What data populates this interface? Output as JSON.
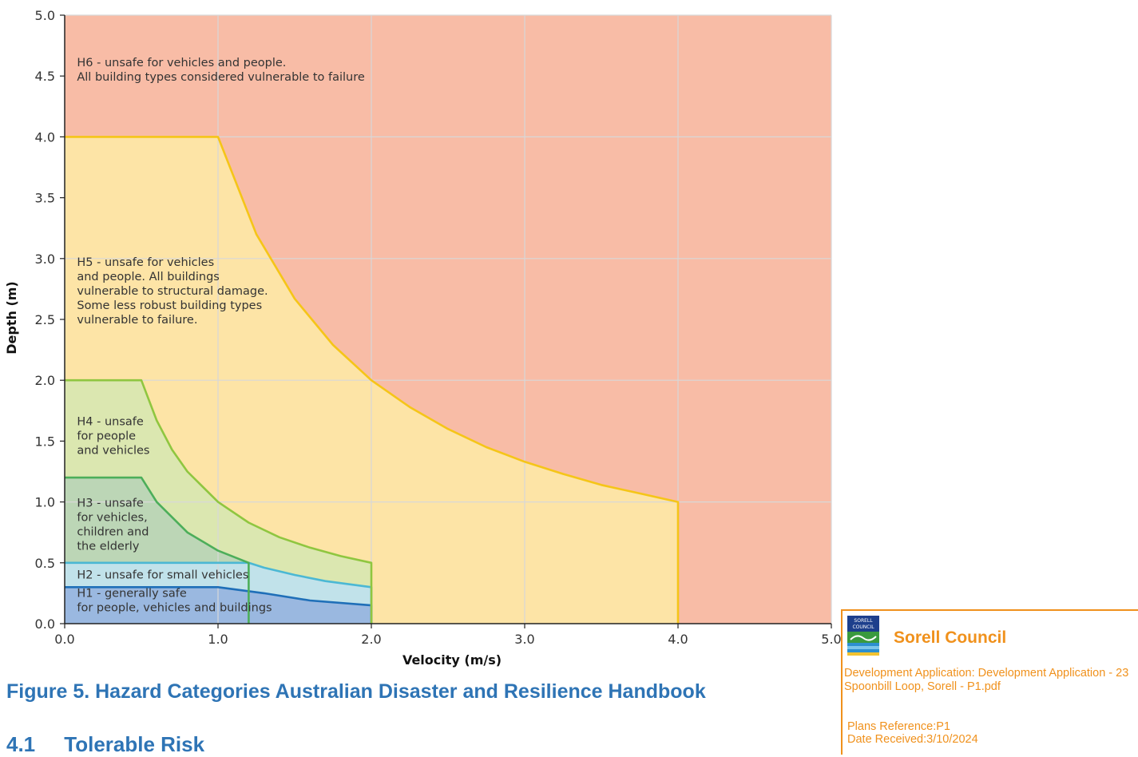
{
  "chart_data": {
    "type": "area",
    "xlabel": "Velocity (m/s)",
    "ylabel": "Depth (m)",
    "xlim": [
      0,
      5
    ],
    "ylim": [
      0,
      5
    ],
    "x_ticks": [
      "0.0",
      "1.0",
      "2.0",
      "3.0",
      "4.0",
      "5.0"
    ],
    "y_ticks": [
      "0.0",
      "0.5",
      "1.0",
      "1.5",
      "2.0",
      "2.5",
      "3.0",
      "3.5",
      "4.0",
      "4.5",
      "5.0"
    ],
    "grid": true,
    "series": [
      {
        "name": "H1",
        "fill": "#9ab8e0",
        "stroke": "#1f6fb8",
        "label_lines": [
          "H1 - generally safe",
          "for people, vehicles and buildings"
        ],
        "boundary": [
          [
            0,
            0.3
          ],
          [
            1.0,
            0.3
          ],
          [
            1.3,
            0.25
          ],
          [
            1.6,
            0.19
          ],
          [
            2.0,
            0.15
          ],
          [
            2.0,
            0.0
          ]
        ]
      },
      {
        "name": "H2",
        "fill": "#c1e2ea",
        "stroke": "#4bb8d4",
        "label_lines": [
          "H2 - unsafe for small vehicles"
        ],
        "boundary": [
          [
            0,
            0.5
          ],
          [
            1.2,
            0.5
          ],
          [
            1.3,
            0.46
          ],
          [
            1.5,
            0.4
          ],
          [
            1.7,
            0.35
          ],
          [
            2.0,
            0.3
          ],
          [
            2.0,
            0.0
          ]
        ]
      },
      {
        "name": "H3",
        "fill": "#bcd6b6",
        "stroke": "#4cae5a",
        "label_lines": [
          "H3 - unsafe",
          "for vehicles,",
          "children and",
          "the elderly"
        ],
        "boundary": [
          [
            0,
            1.2
          ],
          [
            0.5,
            1.2
          ],
          [
            0.6,
            1.0
          ],
          [
            0.8,
            0.75
          ],
          [
            1.0,
            0.6
          ],
          [
            1.2,
            0.5
          ],
          [
            1.2,
            0.0
          ]
        ]
      },
      {
        "name": "H4",
        "fill": "#dbe7b0",
        "stroke": "#8fc640",
        "label_lines": [
          "H4 - unsafe",
          "for people",
          "and vehicles"
        ],
        "boundary": [
          [
            0,
            2.0
          ],
          [
            0.5,
            2.0
          ],
          [
            0.6,
            1.67
          ],
          [
            0.7,
            1.43
          ],
          [
            0.8,
            1.25
          ],
          [
            1.0,
            1.0
          ],
          [
            1.2,
            0.83
          ],
          [
            1.4,
            0.71
          ],
          [
            1.6,
            0.625
          ],
          [
            1.8,
            0.555
          ],
          [
            2.0,
            0.5
          ],
          [
            2.0,
            0.0
          ]
        ]
      },
      {
        "name": "H5",
        "fill": "#fde4a6",
        "stroke": "#f5c518",
        "label_lines": [
          "H5 - unsafe for vehicles",
          "and people. All buildings",
          "vulnerable to structural damage.",
          "Some less robust building types",
          "vulnerable to failure."
        ],
        "boundary": [
          [
            0,
            4.0
          ],
          [
            1.0,
            4.0
          ],
          [
            1.25,
            3.2
          ],
          [
            1.5,
            2.67
          ],
          [
            1.75,
            2.29
          ],
          [
            2.0,
            2.0
          ],
          [
            2.25,
            1.78
          ],
          [
            2.5,
            1.6
          ],
          [
            2.75,
            1.45
          ],
          [
            3.0,
            1.33
          ],
          [
            3.25,
            1.23
          ],
          [
            3.5,
            1.14
          ],
          [
            3.75,
            1.07
          ],
          [
            4.0,
            1.0
          ],
          [
            4.0,
            0.0
          ]
        ]
      },
      {
        "name": "H6",
        "fill": "#f8bca6",
        "stroke": "none",
        "label_lines": [
          "H6 - unsafe for vehicles and people.",
          "All building types considered vulnerable to failure"
        ],
        "boundary": [
          [
            0,
            5.0
          ],
          [
            5.0,
            5.0
          ],
          [
            5.0,
            0.0
          ]
        ]
      }
    ],
    "label_positions": {
      "H1": [
        0.08,
        0.22
      ],
      "H2": [
        0.08,
        0.37
      ],
      "H3": [
        0.08,
        0.96
      ],
      "H4": [
        0.08,
        1.63
      ],
      "H5": [
        0.08,
        2.94
      ],
      "H6": [
        0.08,
        4.58
      ]
    }
  },
  "caption": "Figure 5. Hazard Categories Australian Disaster and Resilience Handbook",
  "next_heading": "4.1     Tolerable Risk",
  "stamp": {
    "logo_text_top": "SORELL",
    "logo_text_bottom": "COUNCIL",
    "council": "Sorell Council",
    "application": "Development Application: Development Application - 23 Spoonbill Loop, Sorell - P1.pdf",
    "plans_reference": "Plans Reference:P1",
    "date_received": "Date Received:3/10/2024",
    "accent_color": "#f0911c"
  }
}
